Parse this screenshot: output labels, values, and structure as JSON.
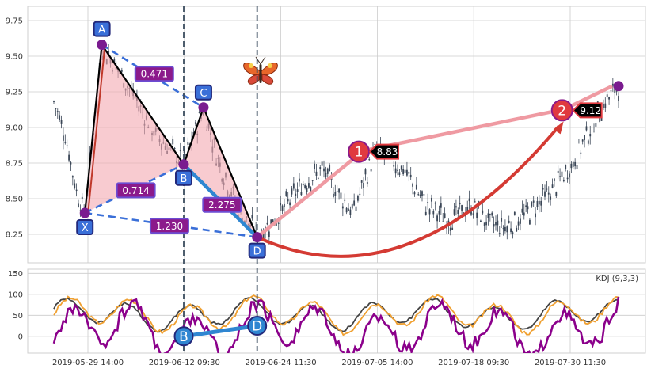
{
  "chart_data": [
    {
      "type": "candlestick",
      "panel": "price",
      "ylim": [
        8.05,
        9.85
      ],
      "y_ticks": [
        "8.25",
        "8.50",
        "8.75",
        "9.00",
        "9.25",
        "9.50",
        "9.75"
      ],
      "x_ticks": [
        "2019-05-29 14:00",
        "2019-06-12 09:30",
        "2019-06-24 11:30",
        "2019-07-05 14:00",
        "2019-07-18 09:30",
        "2019-07-30 11:30"
      ],
      "grid": true,
      "price_path": [
        {
          "t": 0.0,
          "v": 9.18
        },
        {
          "t": 0.02,
          "v": 8.95
        },
        {
          "t": 0.04,
          "v": 8.55
        },
        {
          "t": 0.055,
          "v": 8.4
        },
        {
          "t": 0.085,
          "v": 9.58
        },
        {
          "t": 0.13,
          "v": 9.3
        },
        {
          "t": 0.18,
          "v": 8.95
        },
        {
          "t": 0.23,
          "v": 8.75
        },
        {
          "t": 0.265,
          "v": 9.14
        },
        {
          "t": 0.29,
          "v": 8.78
        },
        {
          "t": 0.33,
          "v": 8.4
        },
        {
          "t": 0.36,
          "v": 8.25
        },
        {
          "t": 0.39,
          "v": 8.35
        },
        {
          "t": 0.44,
          "v": 8.6
        },
        {
          "t": 0.475,
          "v": 8.7
        },
        {
          "t": 0.53,
          "v": 8.4
        },
        {
          "t": 0.57,
          "v": 8.85
        },
        {
          "t": 0.62,
          "v": 8.7
        },
        {
          "t": 0.66,
          "v": 8.45
        },
        {
          "t": 0.7,
          "v": 8.35
        },
        {
          "t": 0.74,
          "v": 8.45
        },
        {
          "t": 0.77,
          "v": 8.33
        },
        {
          "t": 0.8,
          "v": 8.3
        },
        {
          "t": 0.84,
          "v": 8.4
        },
        {
          "t": 0.88,
          "v": 8.55
        },
        {
          "t": 0.92,
          "v": 8.75
        },
        {
          "t": 0.95,
          "v": 9.0
        },
        {
          "t": 0.98,
          "v": 9.2
        },
        {
          "t": 1.0,
          "v": 9.29
        }
      ],
      "pattern": {
        "name": "butterfly",
        "points": [
          {
            "label": "X",
            "t": 0.055,
            "v": 8.4
          },
          {
            "label": "A",
            "t": 0.085,
            "v": 9.58
          },
          {
            "label": "B",
            "t": 0.23,
            "v": 8.74
          },
          {
            "label": "C",
            "t": 0.265,
            "v": 9.14
          },
          {
            "label": "D",
            "t": 0.36,
            "v": 8.23
          }
        ],
        "ratios": [
          "0.471",
          "0.714",
          "1.230",
          "2.275"
        ]
      },
      "targets": [
        {
          "label": "1",
          "value": "8.83",
          "t": 0.54,
          "v": 8.83
        },
        {
          "label": "2",
          "value": "9.12",
          "t": 0.9,
          "v": 9.12
        }
      ],
      "last_point": {
        "t": 1.0,
        "v": 9.29
      }
    },
    {
      "type": "line",
      "panel": "indicator",
      "legend": "KDJ (9,3,3)",
      "ylim": [
        -40,
        160
      ],
      "y_ticks": [
        "0",
        "50",
        "100",
        "150"
      ],
      "series_colors": [
        "#8b008b",
        "#f0a030",
        "#444444"
      ],
      "markers": [
        {
          "label": "B",
          "t": 0.23,
          "v": 0
        },
        {
          "label": "D",
          "t": 0.36,
          "v": 25
        }
      ]
    }
  ],
  "colors": {
    "candle": "#3a4656",
    "grid": "#cccccc",
    "point_fill": "#7a1b8f",
    "label_box": "#3a6fd8",
    "label_border": "#22287a",
    "ratio_box": "#8b1a8b",
    "ratio_border": "#6c4cd2",
    "dashed": "#3a6fd8",
    "pattern_fill": "#f4a8b0",
    "target_circle": "#e03a3f",
    "target_line": "#ef9aa2",
    "arc": "#d43a33",
    "blue_line": "#2f86d1",
    "vline": "#3d4e60"
  }
}
